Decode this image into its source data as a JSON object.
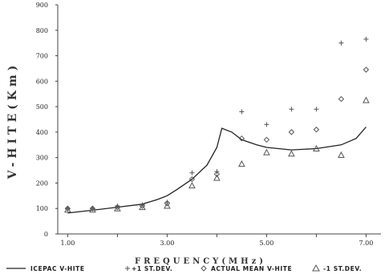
{
  "chart_data": {
    "type": "line",
    "title": "",
    "xlabel": "FREQUENCY(MHz)",
    "ylabel": "V-HITE(Km)",
    "xlim": [
      0.8,
      7.3
    ],
    "ylim": [
      0,
      900
    ],
    "x_ticks": [
      1,
      2,
      3,
      4,
      5,
      6,
      7
    ],
    "x_tick_labels": [
      "1.00",
      "",
      "3.00",
      "",
      "5.00",
      "",
      "7.00"
    ],
    "y_ticks": [
      0,
      100,
      200,
      300,
      400,
      500,
      600,
      700,
      800,
      900
    ],
    "y_tick_labels": [
      "0",
      "100",
      "200",
      "300",
      "400",
      "500",
      "600",
      "700",
      "800",
      "900"
    ],
    "grid": false,
    "legend_position": "bottom",
    "series": [
      {
        "name": "ICEPAC V-HITE",
        "style": "line",
        "x": [
          1.0,
          1.5,
          2.0,
          2.5,
          2.8,
          3.0,
          3.2,
          3.5,
          3.8,
          4.0,
          4.1,
          4.3,
          4.5,
          4.8,
          5.0,
          5.5,
          6.0,
          6.5,
          6.8,
          7.0
        ],
        "y": [
          82,
          93,
          105,
          117,
          135,
          150,
          175,
          215,
          270,
          340,
          415,
          400,
          370,
          350,
          340,
          330,
          335,
          350,
          375,
          420
        ]
      },
      {
        "name": "+1 ST.DEV.",
        "style": "plus",
        "x": [
          1.0,
          1.5,
          2.0,
          2.5,
          3.0,
          3.5,
          4.0,
          4.5,
          5.0,
          5.5,
          6.0,
          6.5,
          7.0
        ],
        "y": [
          100,
          100,
          110,
          115,
          125,
          240,
          245,
          480,
          430,
          490,
          490,
          750,
          765
        ]
      },
      {
        "name": "ACTUAL MEAN V-HITE",
        "style": "diamond",
        "x": [
          1.0,
          1.5,
          2.0,
          2.5,
          3.0,
          3.5,
          4.0,
          4.5,
          5.0,
          5.5,
          6.0,
          6.5,
          7.0
        ],
        "y": [
          100,
          100,
          105,
          110,
          120,
          215,
          235,
          375,
          370,
          400,
          410,
          530,
          645
        ]
      },
      {
        "name": "-1 ST.DEV.",
        "style": "triangle",
        "x": [
          1.0,
          1.5,
          2.0,
          2.5,
          3.0,
          3.5,
          4.0,
          4.5,
          5.0,
          5.5,
          6.0,
          6.5,
          7.0
        ],
        "y": [
          95,
          95,
          100,
          105,
          110,
          190,
          220,
          275,
          320,
          315,
          335,
          310,
          525
        ]
      }
    ],
    "colors": {
      "ink": "#222222",
      "marker": "#555555",
      "axis": "#444444"
    }
  }
}
